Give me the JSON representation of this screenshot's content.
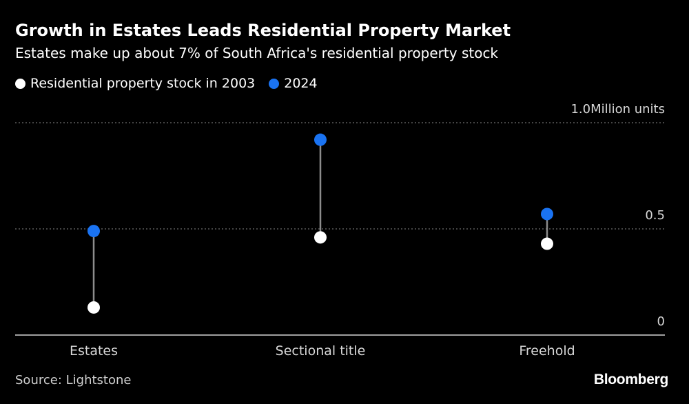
{
  "header": {
    "title": "Growth in Estates Leads Residential Property Market",
    "subtitle": "Estates make up about 7% of South Africa's residential property stock"
  },
  "legend": [
    {
      "label": "Residential property stock in 2003",
      "color": "#ffffff"
    },
    {
      "label": "2024",
      "color": "#1a73f2"
    }
  ],
  "footer": {
    "source": "Source: Lightstone",
    "brand": "Bloomberg"
  },
  "chart_data": {
    "type": "dot-range",
    "title": "Growth in Estates Leads Residential Property Market",
    "subtitle": "Estates make up about 7% of South Africa's residential property stock",
    "categories": [
      "Estates",
      "Sectional title",
      "Freehold"
    ],
    "series": [
      {
        "name": "Residential property stock in 2003",
        "values": [
          0.13,
          0.46,
          0.43
        ],
        "color": "#ffffff"
      },
      {
        "name": "2024",
        "values": [
          0.49,
          0.92,
          0.57
        ],
        "color": "#1a73f2"
      }
    ],
    "ylim": [
      0,
      1.0
    ],
    "yticks": [
      {
        "value": 1.0,
        "label": "1.0Million units"
      },
      {
        "value": 0.5,
        "label": "0.5"
      },
      {
        "value": 0,
        "label": "0"
      }
    ],
    "ylabel": "Million units",
    "grid": true
  }
}
